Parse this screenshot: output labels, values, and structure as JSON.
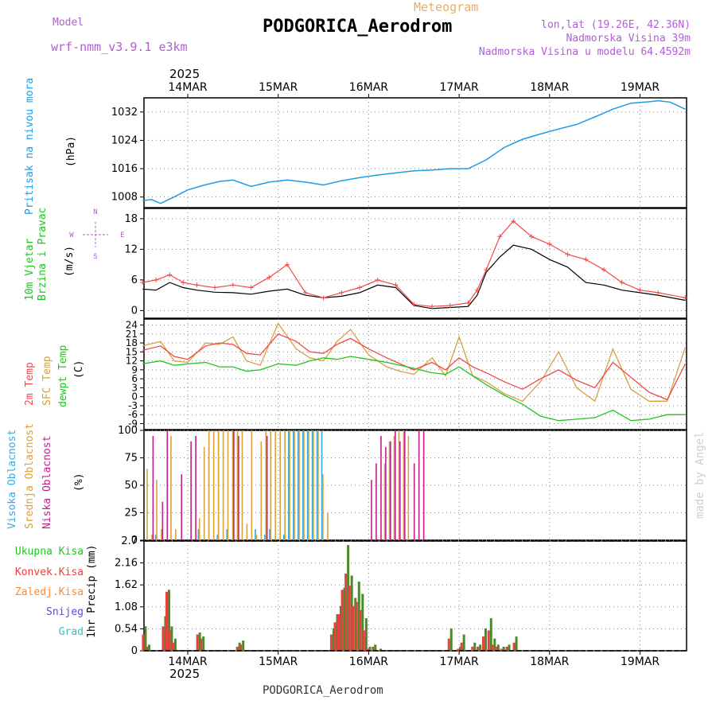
{
  "header": {
    "model_label": "Model",
    "model_name": "wrf-nmm_v3.9.1 e3km",
    "meteogram_label": "Meteogram",
    "title": "PODGORICA_Aerodrom",
    "lonlat": "lon,lat (19.26E, 42.36N)",
    "elevation": "Nadmorska Visina 39m",
    "model_elevation": "Nadmorska Visina u modelu 64.4592m",
    "footer": "PODGORICA_Aerodrom",
    "credit": "made by Angel"
  },
  "colors": {
    "pressure": "#1e9be6",
    "wind": "#22c322",
    "gust": "#f04a4a",
    "t2m": "#f04a4a",
    "tsfc": "#d9a040",
    "dewpt": "#22c322",
    "cloud_high": "#3aa7e0",
    "cloud_mid": "#d9a040",
    "cloud_low": "#c0208c",
    "precip_total": "#22c322",
    "precip_conv": "#e84040",
    "precip_strat": "#ff8a30",
    "snow": "#5050e0",
    "graupel": "#30c0c0"
  },
  "time_axis": {
    "year_top": "2025",
    "year_bottom": "2025",
    "dates": [
      "14MAR",
      "15MAR",
      "16MAR",
      "17MAR",
      "18MAR",
      "19MAR"
    ]
  },
  "chart_data": [
    {
      "type": "line",
      "name": "pressure",
      "ylabel": "Pritisak na nivou mora",
      "unit": "(hPa)",
      "yticks": [
        "1008",
        "1016",
        "1024",
        "1032"
      ],
      "ylim": [
        1005,
        1036
      ],
      "x_days": [
        0,
        0.1,
        0.2,
        0.35,
        0.5,
        0.7,
        0.85,
        1.0,
        1.2,
        1.4,
        1.6,
        1.8,
        2.0,
        2.2,
        2.4,
        2.6,
        2.8,
        3.0,
        3.2,
        3.4,
        3.6,
        3.8,
        4.0,
        4.2,
        4.4,
        4.6,
        4.8,
        5.0,
        5.2,
        5.4,
        5.6,
        5.7,
        5.83,
        6.0
      ],
      "values": [
        1007,
        1007.3,
        1006.2,
        1008,
        1010,
        1011.5,
        1012.4,
        1012.8,
        1011,
        1012.2,
        1012.8,
        1012.2,
        1011.4,
        1012.6,
        1013.5,
        1014.2,
        1014.8,
        1015.4,
        1015.6,
        1016.0,
        1016.0,
        1018.5,
        1022,
        1024.3,
        1025.8,
        1027.2,
        1028.5,
        1030.6,
        1032.8,
        1034.5,
        1034.9,
        1035.2,
        1034.8,
        1032.8
      ]
    },
    {
      "type": "line",
      "name": "wind",
      "ylabel1": "10m Vjetar",
      "ylabel2": "Brzina i Pravac",
      "unit": "(m/s)",
      "yticks": [
        "0",
        "6",
        "12",
        "18"
      ],
      "ylim": [
        -1.5,
        20
      ],
      "compass": [
        "N",
        "W",
        "E",
        "S"
      ],
      "x_days": [
        0,
        0.15,
        0.3,
        0.45,
        0.6,
        0.8,
        1.0,
        1.2,
        1.4,
        1.6,
        1.8,
        2.0,
        2.2,
        2.4,
        2.6,
        2.8,
        3.0,
        3.2,
        3.4,
        3.6,
        3.7,
        3.8,
        3.95,
        4.1,
        4.3,
        4.5,
        4.7,
        4.9,
        5.1,
        5.3,
        5.5,
        5.7,
        6.0
      ],
      "speed": [
        4.2,
        4.0,
        5.5,
        4.5,
        4.0,
        3.6,
        3.5,
        3.2,
        3.8,
        4.2,
        3.0,
        2.5,
        2.8,
        3.5,
        5.0,
        4.5,
        1.0,
        0.4,
        0.6,
        0.8,
        3.0,
        7.5,
        10.5,
        12.8,
        12.0,
        10.0,
        8.5,
        5.5,
        5.0,
        4.0,
        3.5,
        3.0,
        2.0
      ],
      "gust": [
        5.5,
        6.0,
        7.0,
        5.5,
        5.0,
        4.5,
        5.0,
        4.5,
        6.5,
        9.0,
        3.5,
        2.5,
        3.5,
        4.5,
        6.0,
        5.0,
        1.2,
        0.8,
        1.0,
        1.5,
        4.0,
        8.0,
        14.5,
        17.5,
        14.5,
        13.0,
        11.0,
        10.0,
        8.0,
        5.5,
        4.0,
        3.5,
        2.5
      ]
    },
    {
      "type": "line",
      "name": "temperature",
      "ylabel1": "2m Temp",
      "ylabel2": "SFC Temp",
      "ylabel3": "dewpt Temp",
      "unit": "(C)",
      "yticks": [
        "-9",
        "-6",
        "-3",
        "0",
        "3",
        "6",
        "9",
        "12",
        "15",
        "18",
        "21",
        "24"
      ],
      "ylim": [
        -11,
        26
      ],
      "x_days": [
        0,
        0.2,
        0.35,
        0.5,
        0.7,
        0.85,
        1.0,
        1.15,
        1.3,
        1.5,
        1.7,
        1.85,
        2.0,
        2.15,
        2.3,
        2.5,
        2.7,
        2.85,
        3.0,
        3.2,
        3.35,
        3.5,
        3.65,
        3.8,
        4.0,
        4.2,
        4.4,
        4.6,
        4.8,
        5.0,
        5.2,
        5.4,
        5.6,
        5.8,
        6.0
      ],
      "t2m": [
        15.5,
        17.0,
        13.5,
        12.5,
        17.0,
        18.0,
        17.5,
        14.5,
        14.0,
        21.0,
        18.5,
        15.0,
        14.5,
        17.5,
        19.5,
        16.0,
        13.0,
        11.0,
        9.0,
        11.5,
        9.0,
        13.0,
        10.0,
        8.0,
        5.0,
        2.5,
        6.0,
        9.0,
        5.5,
        3.0,
        11.5,
        6.5,
        1.5,
        -1.0,
        11.0
      ],
      "tsfc": [
        17.0,
        18.5,
        12.0,
        11.5,
        18.0,
        17.5,
        20.0,
        12.0,
        10.5,
        24.5,
        16.0,
        13.0,
        12.0,
        18.5,
        22.5,
        14.0,
        10.0,
        8.5,
        7.5,
        13.0,
        7.0,
        20.0,
        7.0,
        5.0,
        1.0,
        -1.5,
        5.0,
        15.0,
        3.0,
        -1.5,
        16.0,
        2.5,
        -1.5,
        -1.5,
        16.5
      ],
      "dewpt": [
        11.0,
        12.0,
        10.5,
        11.0,
        11.5,
        10.0,
        10.0,
        8.5,
        9.0,
        11.0,
        10.5,
        12.0,
        13.0,
        12.5,
        13.5,
        12.5,
        11.5,
        10.5,
        9.5,
        8.0,
        7.5,
        10.0,
        7.0,
        4.0,
        0.5,
        -2.5,
        -6.5,
        -8.0,
        -7.5,
        -7.0,
        -4.5,
        -8.0,
        -7.5,
        -6.0,
        -6.0
      ]
    },
    {
      "type": "bar",
      "name": "cloud_cover",
      "ylabel1": "Visoka Oblacnost",
      "ylabel2": "Srednja Oblacnost",
      "ylabel3": "Niska Oblacnost",
      "unit": "(%)",
      "yticks": [
        "0",
        "25",
        "50",
        "75",
        "100"
      ],
      "ylim": [
        0,
        100
      ],
      "series": [
        {
          "name": "Visoka Oblacnost",
          "values": [
            0,
            0,
            5,
            0,
            0,
            0,
            0,
            0,
            0,
            0,
            0,
            10,
            0,
            0,
            0,
            5,
            0,
            10,
            0,
            0,
            0,
            0,
            0,
            10,
            0,
            5,
            10,
            0,
            0,
            5,
            100,
            100,
            100,
            100,
            100,
            100,
            100,
            100,
            0,
            0,
            0,
            0,
            0,
            0,
            0,
            0,
            0,
            0,
            0,
            0,
            0,
            0,
            0,
            0,
            0,
            0,
            0,
            0,
            0,
            0,
            0,
            0,
            0,
            0,
            0,
            0,
            0,
            0,
            0,
            0,
            0,
            0
          ]
        },
        {
          "name": "Srednja Oblacnost",
          "values": [
            65,
            5,
            55,
            10,
            0,
            95,
            10,
            0,
            0,
            0,
            0,
            20,
            85,
            100,
            100,
            100,
            100,
            100,
            100,
            100,
            100,
            15,
            100,
            5,
            90,
            100,
            100,
            100,
            100,
            100,
            100,
            100,
            100,
            100,
            100,
            100,
            100,
            60,
            25,
            0,
            0,
            0,
            0,
            0,
            0,
            0,
            0,
            0,
            0,
            0,
            70,
            90,
            95,
            100,
            100,
            95,
            0,
            0,
            0,
            0,
            0,
            0,
            0,
            0,
            0,
            0,
            0,
            0,
            0,
            0,
            0,
            0
          ]
        },
        {
          "name": "Niska Oblacnost",
          "values": [
            0,
            95,
            0,
            35,
            100,
            0,
            0,
            60,
            0,
            90,
            95,
            0,
            0,
            0,
            0,
            0,
            0,
            0,
            100,
            95,
            0,
            0,
            0,
            0,
            0,
            95,
            0,
            0,
            0,
            0,
            0,
            0,
            0,
            0,
            0,
            0,
            0,
            0,
            0,
            0,
            0,
            0,
            0,
            0,
            0,
            0,
            0,
            55,
            70,
            95,
            85,
            90,
            100,
            90,
            100,
            0,
            70,
            100,
            100,
            0,
            0,
            0,
            0,
            0,
            0,
            0,
            0,
            0,
            0,
            0,
            0,
            0
          ]
        }
      ]
    },
    {
      "type": "bar",
      "name": "precipitation",
      "ylabel": "1hr Precip (mm)",
      "yticks": [
        "0",
        "0.54",
        "1.08",
        "1.62",
        "2.16",
        "2.7"
      ],
      "ylim": [
        0,
        2.7
      ],
      "legend": [
        "Ukupna Kisa",
        "Konvek.Kisa",
        "Zaledj.Kisa",
        "Snijeg",
        "Grad"
      ],
      "x_days": [
        0.02,
        0.06,
        0.24,
        0.28,
        0.31,
        0.35,
        0.62,
        0.66,
        1.06,
        1.1,
        2.1,
        2.14,
        2.18,
        2.22,
        2.26,
        2.3,
        2.34,
        2.38,
        2.42,
        2.46,
        2.5,
        2.56,
        2.62,
        3.4,
        3.5,
        3.54,
        3.66,
        3.72,
        3.78,
        3.84,
        3.88,
        3.92,
        3.98,
        4.04,
        4.12
      ],
      "total": [
        0.6,
        0.15,
        0.85,
        1.5,
        0.6,
        0.3,
        0.45,
        0.35,
        0.2,
        0.25,
        0.55,
        0.9,
        1.1,
        1.55,
        2.6,
        1.85,
        1.3,
        1.7,
        1.4,
        0.8,
        0.1,
        0.15,
        0.05,
        0.55,
        0.1,
        0.4,
        0.2,
        0.15,
        0.55,
        0.8,
        0.3,
        0.15,
        0.1,
        0.15,
        0.35
      ],
      "convective": [
        0.4,
        0.1,
        0.6,
        1.45,
        0.5,
        0.2,
        0.4,
        0.3,
        0.1,
        0.15,
        0.4,
        0.7,
        0.9,
        1.5,
        1.9,
        1.6,
        1.1,
        1.2,
        1.0,
        0.5,
        0.05,
        0.1,
        0.02,
        0.3,
        0.05,
        0.2,
        0.1,
        0.1,
        0.35,
        0.5,
        0.15,
        0.1,
        0.05,
        0.1,
        0.2
      ]
    }
  ]
}
